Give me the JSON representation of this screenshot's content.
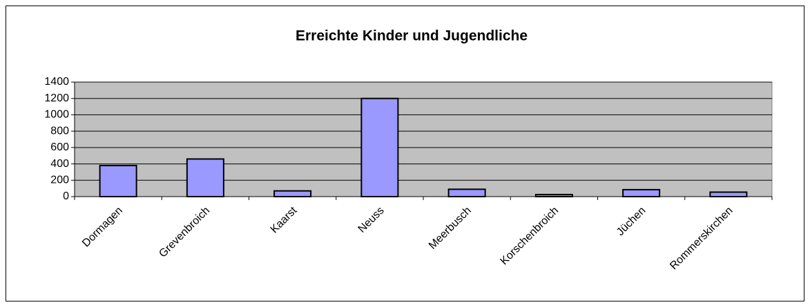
{
  "chart_data": {
    "type": "bar",
    "title": "Erreichte Kinder und Jugendliche",
    "categories": [
      "Dormagen",
      "Grevenbroich",
      "Kaarst",
      "Neuss",
      "Meerbusch",
      "Korschenbroich",
      "Jüchen",
      "Rommerskirchen"
    ],
    "values": [
      380,
      460,
      70,
      1200,
      90,
      25,
      85,
      55
    ],
    "color": "#9999ff",
    "ylim": [
      0,
      1400
    ],
    "yticks": [
      0,
      200,
      400,
      600,
      800,
      1000,
      1200,
      1400
    ],
    "grid": true
  }
}
